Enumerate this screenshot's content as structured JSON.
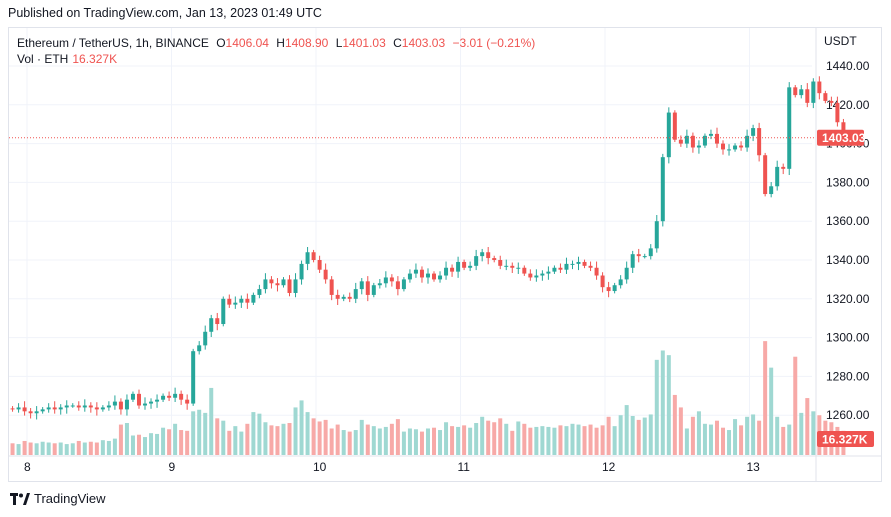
{
  "header": {
    "published": "Published on TradingView.com, Jan 13, 2023 01:49 UTC"
  },
  "legend": {
    "symbol": "Ethereum / TetherUS, 1h, BINANCE",
    "open_label": "O",
    "open": "1406.04",
    "high_label": "H",
    "high": "1408.90",
    "low_label": "L",
    "low": "1401.03",
    "close_label": "C",
    "close": "1403.03",
    "change": "−3.01 (−0.21%)",
    "vol_label": "Vol · ETH",
    "vol": "16.327K"
  },
  "currency": "USDT",
  "price_tag": "1403.03",
  "volume_tag": "16.327K",
  "brand": "TradingView",
  "colors": {
    "up": "#26a69a",
    "down": "#ef5350",
    "up_vol": "#9fd8d2",
    "down_vol": "#f7a9a7",
    "grid": "#f0f3fa"
  },
  "chart_data": {
    "type": "candlestick",
    "y_ticks": [
      "1440.00",
      "1420.00",
      "1400.00",
      "1380.00",
      "1360.00",
      "1340.00",
      "1320.00",
      "1300.00",
      "1280.00",
      "1260.00"
    ],
    "x_ticks": [
      {
        "label": "8",
        "day": 8
      },
      {
        "label": "9",
        "day": 9
      },
      {
        "label": "10",
        "day": 10
      },
      {
        "label": "11",
        "day": 11
      },
      {
        "label": "12",
        "day": 12
      },
      {
        "label": "13",
        "day": 13
      }
    ],
    "ylim": [
      1252,
      1448
    ],
    "last_close": 1403.03,
    "start_day": 7.9,
    "hours_per_candle": 1,
    "close": [
      1263,
      1264,
      1262,
      1261,
      1262,
      1263,
      1264,
      1263,
      1264,
      1265,
      1265,
      1264,
      1265,
      1264,
      1263,
      1264,
      1265,
      1267,
      1263,
      1268,
      1271,
      1265,
      1266,
      1267,
      1268,
      1270,
      1269,
      1271,
      1268,
      1266,
      1293,
      1296,
      1303,
      1310,
      1307,
      1320,
      1317,
      1318,
      1320,
      1318,
      1322,
      1325,
      1330,
      1328,
      1327,
      1330,
      1323,
      1330,
      1338,
      1344,
      1340,
      1335,
      1330,
      1322,
      1320,
      1321,
      1320,
      1325,
      1329,
      1322,
      1327,
      1328,
      1331,
      1329,
      1325,
      1330,
      1333,
      1335,
      1331,
      1333,
      1330,
      1332,
      1336,
      1334,
      1339,
      1336,
      1337,
      1342,
      1344,
      1341,
      1340,
      1337,
      1337,
      1336,
      1336,
      1333,
      1331,
      1332,
      1333,
      1334,
      1336,
      1335,
      1338,
      1338,
      1339,
      1337,
      1336,
      1332,
      1326,
      1324,
      1327,
      1330,
      1336,
      1343,
      1342,
      1342,
      1346,
      1360,
      1393,
      1416,
      1402,
      1400,
      1404,
      1398,
      1399,
      1404,
      1405,
      1400,
      1397,
      1397,
      1399,
      1398,
      1404,
      1408,
      1394,
      1374,
      1378,
      1388,
      1387,
      1429,
      1425,
      1428,
      1421,
      1432,
      1426,
      1422,
      1421,
      1411,
      1403
    ],
    "volume": [
      1.5,
      1.4,
      1.8,
      1.6,
      1.5,
      1.7,
      1.6,
      1.5,
      1.6,
      1.4,
      1.5,
      1.8,
      1.6,
      1.7,
      1.6,
      1.9,
      1.8,
      2.1,
      3.9,
      4.1,
      2.5,
      2.6,
      2.3,
      2.8,
      2.7,
      3.5,
      3.3,
      4.0,
      3.2,
      3.1,
      5.6,
      5.8,
      5.4,
      8.6,
      4.7,
      4.4,
      3.1,
      3.7,
      3.0,
      4.0,
      5.5,
      5.3,
      4.2,
      3.8,
      3.7,
      4.0,
      4.1,
      6.1,
      7.0,
      5.5,
      4.7,
      4.3,
      4.5,
      3.4,
      3.9,
      3.2,
      3.0,
      3.2,
      4.5,
      3.9,
      3.7,
      3.4,
      3.6,
      4.0,
      4.6,
      3.0,
      3.4,
      3.3,
      3.0,
      3.4,
      3.5,
      3.2,
      4.2,
      3.7,
      3.6,
      3.8,
      3.5,
      4.1,
      4.9,
      4.4,
      4.2,
      4.7,
      4.0,
      3.1,
      4.3,
      4.0,
      3.5,
      3.6,
      3.7,
      3.6,
      3.5,
      3.8,
      3.7,
      4.0,
      3.9,
      3.7,
      3.9,
      3.5,
      3.8,
      4.9,
      3.7,
      5.1,
      6.4,
      5.0,
      4.5,
      4.8,
      5.2,
      12.2,
      13.4,
      12.8,
      7.7,
      6.1,
      3.4,
      4.9,
      5.6,
      4.0,
      3.9,
      4.4,
      3.5,
      3.2,
      4.6,
      3.8,
      4.9,
      5.2,
      4.4,
      14.6,
      11.2,
      4.9,
      3.6,
      3.9,
      12.6,
      5.4,
      7.3,
      5.6,
      5.1,
      4.4,
      4.2,
      3.6,
      3.1
    ]
  }
}
